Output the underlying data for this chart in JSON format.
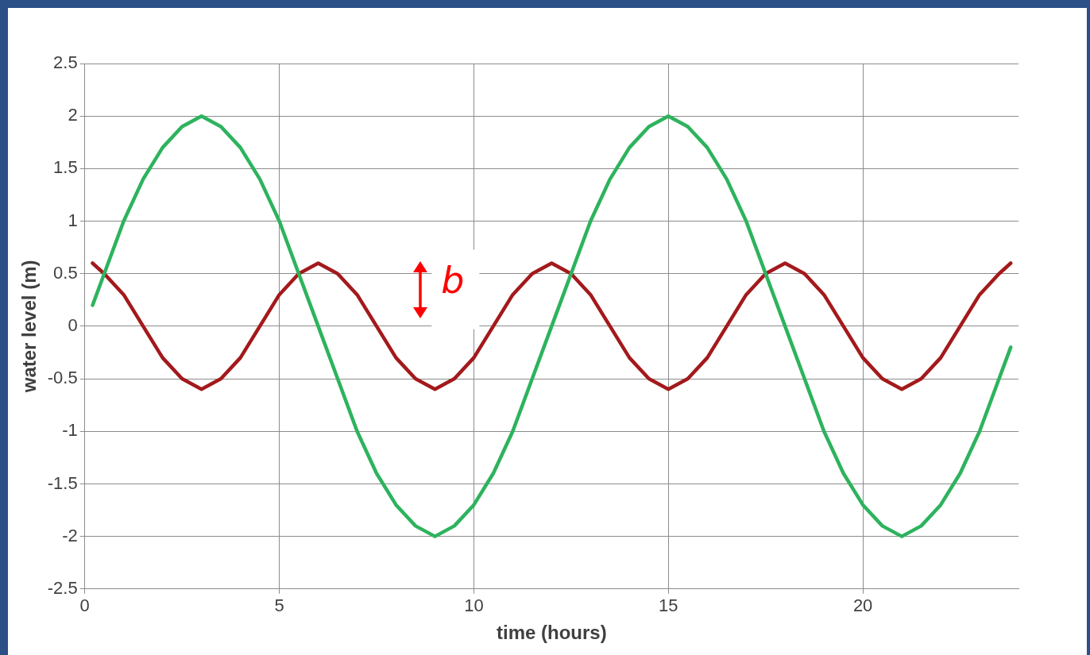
{
  "chart_data": {
    "type": "line",
    "xlabel": "time (hours)",
    "ylabel": "water level (m)",
    "x": [
      0.2,
      0.5,
      1,
      1.5,
      2,
      2.5,
      3,
      3.5,
      4,
      4.5,
      5,
      5.5,
      6,
      6.5,
      7,
      7.5,
      8,
      8.5,
      9,
      9.5,
      10,
      10.5,
      11,
      11.5,
      12,
      12.5,
      13,
      13.5,
      14,
      14.5,
      15,
      15.5,
      16,
      16.5,
      17,
      17.5,
      18,
      18.5,
      19,
      19.5,
      20,
      20.5,
      21,
      21.5,
      22,
      22.5,
      23,
      23.5,
      23.8
    ],
    "series": [
      {
        "color": "#2db35d",
        "values": [
          0.2,
          0.5,
          1,
          1.4,
          1.7,
          1.9,
          2,
          1.9,
          1.7,
          1.4,
          1,
          0.5,
          0,
          -0.5,
          -1,
          -1.4,
          -1.7,
          -1.9,
          -2,
          -1.9,
          -1.7,
          -1.4,
          -1,
          -0.5,
          0,
          0.5,
          1,
          1.4,
          1.7,
          1.9,
          2,
          1.9,
          1.7,
          1.4,
          1,
          0.5,
          0,
          -0.5,
          -1,
          -1.4,
          -1.7,
          -1.9,
          -2,
          -1.9,
          -1.7,
          -1.4,
          -1,
          -0.5,
          -0.2
        ]
      },
      {
        "color": "#a3191c",
        "values": [
          0.6,
          0.5,
          0.3,
          0,
          -0.3,
          -0.5,
          -0.6,
          -0.5,
          -0.3,
          0,
          0.3,
          0.5,
          0.6,
          0.5,
          0.3,
          0,
          -0.3,
          -0.5,
          -0.6,
          -0.5,
          -0.3,
          0,
          0.3,
          0.5,
          0.6,
          0.5,
          0.3,
          0,
          -0.3,
          -0.5,
          -0.6,
          -0.5,
          -0.3,
          0,
          0.3,
          0.5,
          0.6,
          0.5,
          0.3,
          0,
          -0.3,
          -0.5,
          -0.6,
          -0.5,
          -0.3,
          0,
          0.3,
          0.5,
          0.6
        ]
      }
    ],
    "xlim": [
      0,
      24
    ],
    "xticks": [
      0,
      5,
      10,
      15,
      20
    ],
    "ylim": [
      -2.5,
      2.5
    ],
    "yticks": [
      -2.5,
      -2,
      -1.5,
      -1,
      -0.5,
      0,
      0.5,
      1,
      1.5,
      2,
      2.5
    ],
    "grid": true,
    "legend": false,
    "marker": "none",
    "line_style": "solid",
    "annotations": [
      "b"
    ]
  }
}
